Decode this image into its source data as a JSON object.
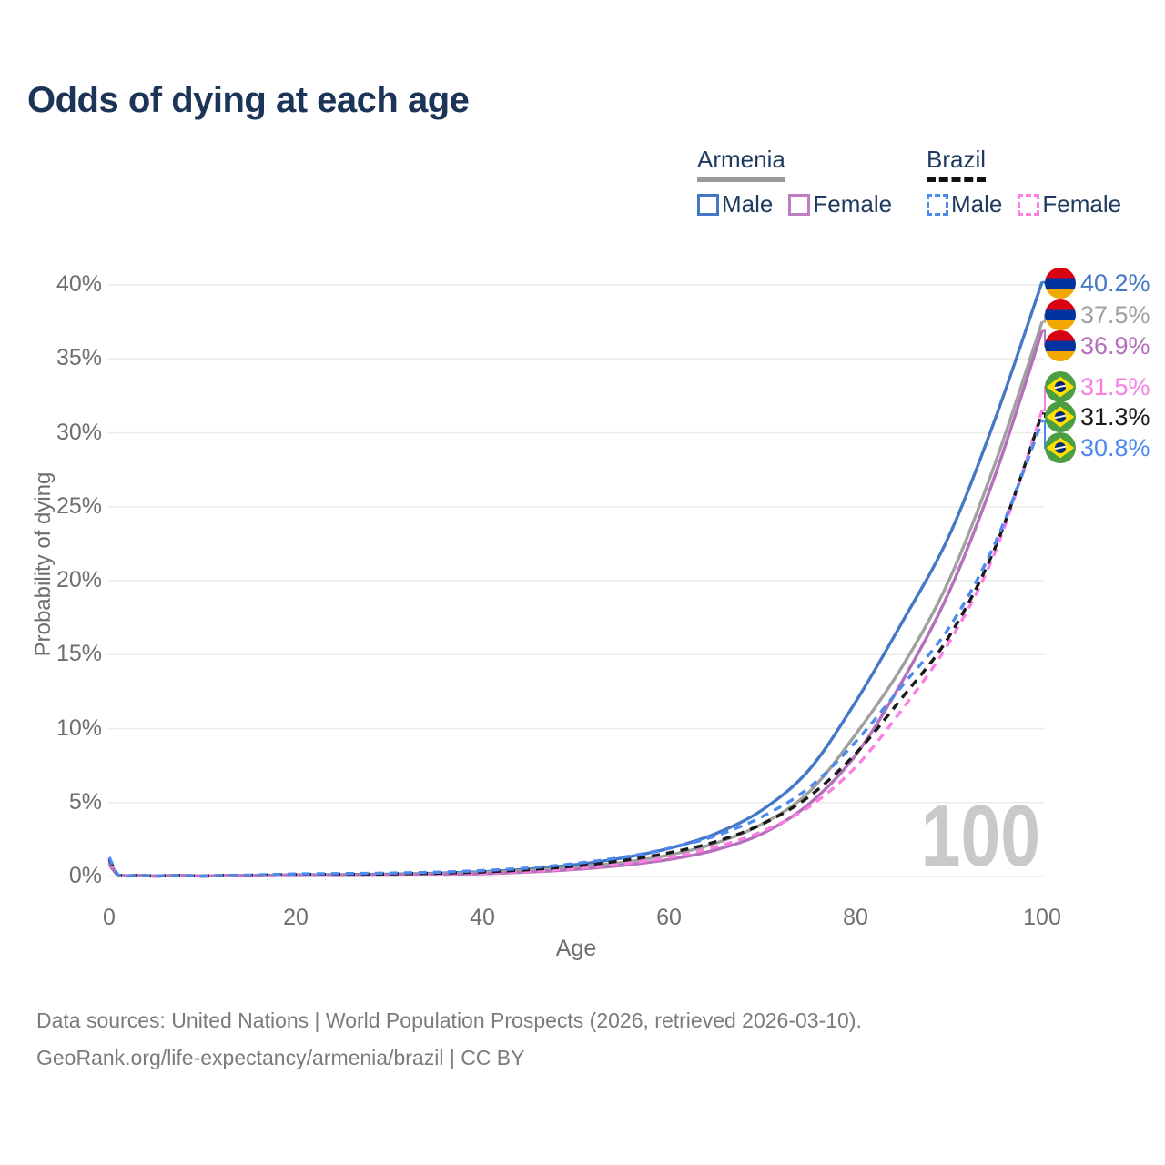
{
  "title": "Odds of dying at each age",
  "watermark": "100",
  "legend": {
    "armenia": {
      "label": "Armenia",
      "male_label": "Male",
      "female_label": "Female"
    },
    "brazil": {
      "label": "Brazil",
      "male_label": "Male",
      "female_label": "Female"
    }
  },
  "y_axis": {
    "title": "Probability of dying",
    "ticks": [
      "0%",
      "5%",
      "10%",
      "15%",
      "20%",
      "25%",
      "30%",
      "35%",
      "40%"
    ]
  },
  "x_axis": {
    "title": "Age",
    "ticks": [
      "0",
      "20",
      "40",
      "60",
      "80",
      "100"
    ]
  },
  "end_labels": [
    {
      "value": "40.2%",
      "country": "armenia",
      "series": "Armenia Male",
      "color": "#4477c4"
    },
    {
      "value": "37.5%",
      "country": "armenia",
      "series": "Armenia Total",
      "color": "#a0a0a0"
    },
    {
      "value": "36.9%",
      "country": "armenia",
      "series": "Armenia Female",
      "color": "#b470bb"
    },
    {
      "value": "31.5%",
      "country": "brazil",
      "series": "Brazil Female",
      "color": "#fb7ee3"
    },
    {
      "value": "31.3%",
      "country": "brazil",
      "series": "Brazil Total",
      "color": "#1a1a1a"
    },
    {
      "value": "30.8%",
      "country": "brazil",
      "series": "Brazil Male",
      "color": "#4d8af0"
    }
  ],
  "footer": {
    "line1": "Data sources: United Nations | World Population Prospects (2026, retrieved 2026-03-10).",
    "line2": "GeoRank.org/life-expectancy/armenia/brazil | CC BY"
  },
  "colors": {
    "title": "#1b3457",
    "axis_text": "#6f6f6f",
    "gridline": "#ebebeb",
    "watermark": "#c9c9c9",
    "footer": "#7b7b7b",
    "armenia_male": "#4477c4",
    "armenia_total": "#a0a0a0",
    "armenia_female": "#b470bb",
    "brazil_male": "#4d8af0",
    "brazil_total": "#1a1a1a",
    "brazil_female": "#fb7ee3"
  },
  "chart_data": {
    "type": "line",
    "title": "Odds of dying at each age",
    "xlabel": "Age",
    "ylabel": "Probability of dying",
    "xlim": [
      0,
      100
    ],
    "ylim": [
      0,
      40
    ],
    "y_unit": "percent",
    "grid": "horizontal",
    "legend_position": "top-right",
    "x": [
      0,
      1,
      2,
      5,
      10,
      15,
      20,
      25,
      30,
      35,
      40,
      45,
      50,
      55,
      60,
      65,
      70,
      75,
      80,
      85,
      90,
      95,
      100
    ],
    "series": [
      {
        "name": "Armenia Male",
        "style": "solid",
        "color": "#4477c4",
        "end_label": "40.2%",
        "values": [
          1.0,
          0.07,
          0.05,
          0.03,
          0.03,
          0.06,
          0.11,
          0.13,
          0.16,
          0.22,
          0.32,
          0.5,
          0.8,
          1.25,
          1.9,
          2.9,
          4.5,
          7.2,
          11.8,
          17.2,
          23.0,
          31.0,
          40.2
        ]
      },
      {
        "name": "Armenia Total",
        "style": "solid",
        "color": "#a0a0a0",
        "end_label": "37.5%",
        "values": [
          0.9,
          0.06,
          0.04,
          0.03,
          0.03,
          0.05,
          0.09,
          0.11,
          0.13,
          0.18,
          0.26,
          0.4,
          0.62,
          0.95,
          1.45,
          2.25,
          3.55,
          5.7,
          9.6,
          14.2,
          20.0,
          28.0,
          37.5
        ]
      },
      {
        "name": "Armenia Female",
        "style": "solid",
        "color": "#b470bb",
        "end_label": "36.9%",
        "values": [
          0.8,
          0.05,
          0.03,
          0.02,
          0.02,
          0.04,
          0.06,
          0.07,
          0.09,
          0.13,
          0.19,
          0.3,
          0.48,
          0.75,
          1.15,
          1.8,
          2.9,
          4.9,
          8.2,
          13.2,
          19.2,
          27.2,
          36.9
        ]
      },
      {
        "name": "Brazil Female",
        "style": "dashed",
        "color": "#fb7ee3",
        "end_label": "31.5%",
        "values": [
          1.1,
          0.06,
          0.04,
          0.03,
          0.03,
          0.05,
          0.08,
          0.09,
          0.11,
          0.15,
          0.22,
          0.34,
          0.54,
          0.85,
          1.3,
          2.0,
          3.05,
          4.7,
          7.4,
          11.3,
          15.8,
          22.0,
          31.5
        ]
      },
      {
        "name": "Brazil Total",
        "style": "dashed",
        "color": "#1a1a1a",
        "end_label": "31.3%",
        "values": [
          1.2,
          0.07,
          0.05,
          0.03,
          0.03,
          0.08,
          0.13,
          0.15,
          0.17,
          0.22,
          0.31,
          0.46,
          0.71,
          1.07,
          1.6,
          2.35,
          3.55,
          5.4,
          8.3,
          12.1,
          16.2,
          22.3,
          31.3
        ]
      },
      {
        "name": "Brazil Male",
        "style": "dashed",
        "color": "#4d8af0",
        "end_label": "30.8%",
        "values": [
          1.3,
          0.08,
          0.05,
          0.04,
          0.04,
          0.1,
          0.17,
          0.2,
          0.23,
          0.29,
          0.4,
          0.58,
          0.88,
          1.3,
          1.9,
          2.75,
          4.05,
          6.0,
          9.1,
          12.9,
          16.8,
          22.6,
          30.8
        ]
      }
    ]
  }
}
